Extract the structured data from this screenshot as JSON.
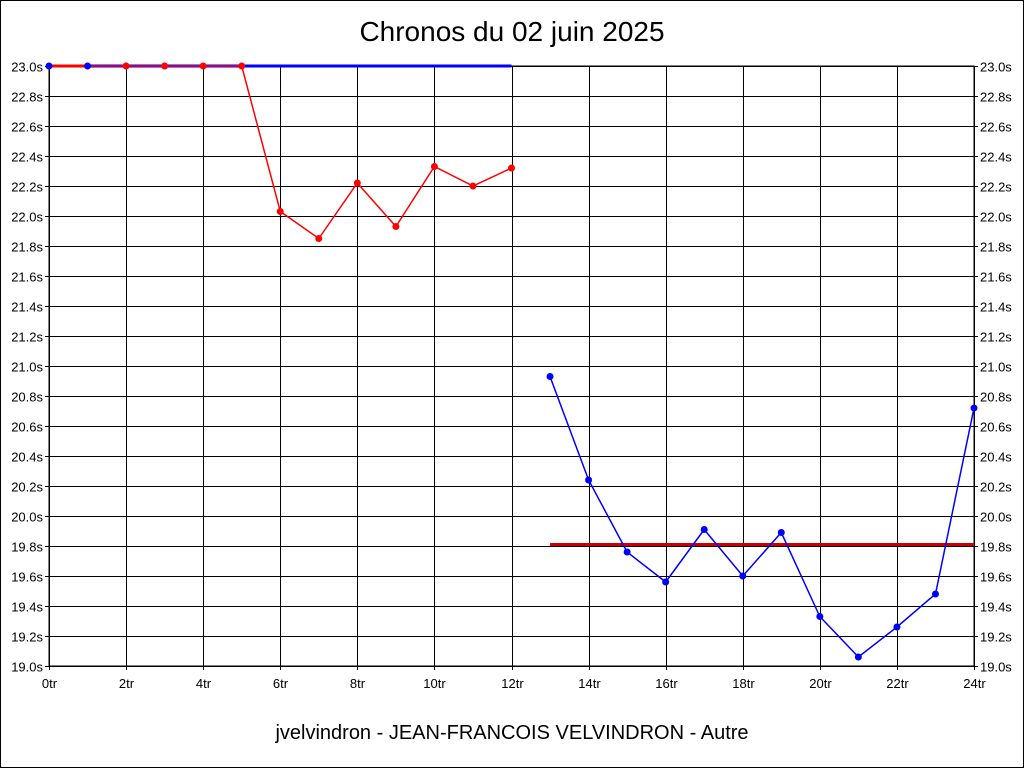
{
  "chart_data": {
    "type": "line",
    "title": "Chronos du 02 juin 2025",
    "subtitle": "jvelvindron - JEAN-FRANCOIS VELVINDRON - Autre",
    "xlim": [
      0,
      24
    ],
    "ylim": [
      19.0,
      23.0
    ],
    "x_ticks": [
      0,
      2,
      4,
      6,
      8,
      10,
      12,
      14,
      16,
      18,
      20,
      22,
      24
    ],
    "x_tick_labels": [
      "0tr",
      "2tr",
      "4tr",
      "6tr",
      "8tr",
      "10tr",
      "12tr",
      "14tr",
      "16tr",
      "18tr",
      "20tr",
      "22tr",
      "24tr"
    ],
    "y_ticks": [
      19.0,
      19.2,
      19.4,
      19.6,
      19.8,
      20.0,
      20.2,
      20.4,
      20.6,
      20.8,
      21.0,
      21.2,
      21.4,
      21.6,
      21.8,
      22.0,
      22.2,
      22.4,
      22.6,
      22.8,
      23.0
    ],
    "y_tick_labels": [
      "19.0s",
      "19.2s",
      "19.4s",
      "19.6s",
      "19.8s",
      "20.0s",
      "20.2s",
      "20.4s",
      "20.6s",
      "20.8s",
      "21.0s",
      "21.2s",
      "21.4s",
      "21.6s",
      "21.8s",
      "22.0s",
      "22.2s",
      "22.4s",
      "22.6s",
      "22.8s",
      "23.0s"
    ],
    "grid": true,
    "series": [
      {
        "color": "#ff0000",
        "points": [
          [
            0,
            23.0
          ],
          [
            1,
            23.0
          ],
          [
            2,
            23.0
          ],
          [
            3,
            23.0
          ],
          [
            4,
            23.0
          ],
          [
            5,
            23.0
          ],
          [
            6,
            22.03
          ],
          [
            7,
            21.85
          ],
          [
            8,
            22.22
          ],
          [
            9,
            21.93
          ],
          [
            10,
            22.33
          ],
          [
            11,
            22.2
          ],
          [
            12,
            22.32
          ]
        ]
      },
      {
        "color": "#0000ff",
        "points": [
          [
            13,
            20.93
          ],
          [
            14,
            20.24
          ],
          [
            15,
            19.76
          ],
          [
            16,
            19.56
          ],
          [
            17,
            19.91
          ],
          [
            18,
            19.6
          ],
          [
            19,
            19.89
          ],
          [
            20,
            19.33
          ],
          [
            21,
            19.06
          ],
          [
            22,
            19.26
          ],
          [
            23,
            19.48
          ],
          [
            24,
            20.72
          ]
        ]
      }
    ],
    "reference_lines": [
      {
        "color": "#0000ff",
        "x": [
          0,
          12
        ],
        "y": 23.0
      },
      {
        "color": "#ff0000",
        "x": [
          0,
          1
        ],
        "y": 23.0
      },
      {
        "color": "#cc0000",
        "x": [
          13,
          24
        ],
        "y": 19.81
      }
    ],
    "marker_colors": {
      "blue_markers_on_red_series": [
        0,
        1
      ]
    }
  }
}
